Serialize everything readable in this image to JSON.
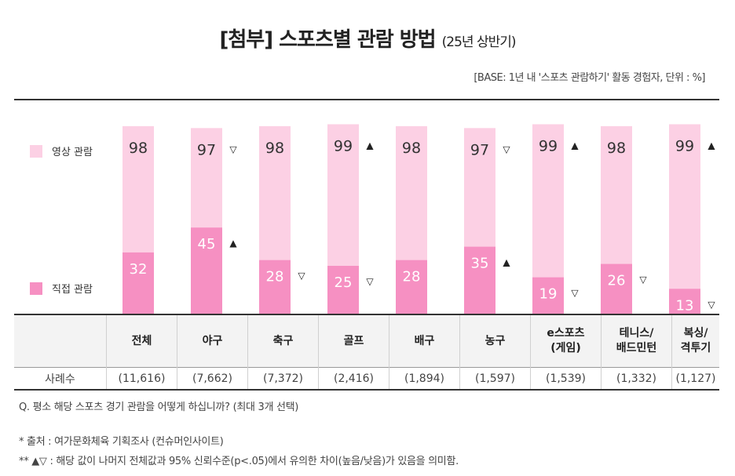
{
  "header": {
    "title": "[첨부] 스포츠별 관람 방법",
    "title_suffix": "(25년 상반기)",
    "base_note": "[BASE: 1년 내 '스포츠 관람하기' 활동 경험자, 단위 : %]"
  },
  "legend": {
    "video": "영상 관람",
    "direct": "직접 관람"
  },
  "colors": {
    "video": "#fcd0e4",
    "direct": "#f690c2"
  },
  "table": {
    "sample_label": "사례수",
    "categories": [
      {
        "name": "전체",
        "sample": "(11,616)"
      },
      {
        "name": "야구",
        "sample": "(7,662)"
      },
      {
        "name": "축구",
        "sample": "(7,372)"
      },
      {
        "name": "골프",
        "sample": "(2,416)"
      },
      {
        "name": "배구",
        "sample": "(1,894)"
      },
      {
        "name": "농구",
        "sample": "(1,597)"
      },
      {
        "name": "e스포츠\n(게임)",
        "sample": "(1,539)"
      },
      {
        "name": "테니스/\n배드민턴",
        "sample": "(1,332)"
      },
      {
        "name": "복싱/\n격투기",
        "sample": "(1,127)"
      }
    ]
  },
  "chart_data": {
    "type": "bar",
    "categories": [
      "전체",
      "야구",
      "축구",
      "골프",
      "배구",
      "농구",
      "e스포츠(게임)",
      "테니스/배드민턴",
      "복싱/격투기"
    ],
    "series": [
      {
        "name": "영상 관람",
        "values": [
          98,
          97,
          98,
          99,
          98,
          97,
          99,
          98,
          99
        ],
        "markers": [
          "",
          "▽",
          "",
          "▲",
          "",
          "▽",
          "▲",
          "",
          "▲"
        ]
      },
      {
        "name": "직접 관람",
        "values": [
          32,
          45,
          28,
          25,
          28,
          35,
          19,
          26,
          13
        ],
        "markers": [
          "",
          "▲",
          "▽",
          "▽",
          "",
          "▲",
          "▽",
          "▽",
          "▽"
        ]
      }
    ],
    "ylim": [
      0,
      100
    ],
    "unit": "%"
  },
  "footer": {
    "question": "Q. 평소 해당 스포츠 경기 관람을 어떻게 하십니까? (최대 3개 선택)",
    "source": "* 출처 : 여가문화체육 기획조사 (컨슈머인사이트)",
    "significance": "** ▲▽ : 해당 값이 나머지 전체값과 95% 신뢰수준(p<.05)에서 유의한 차이(높음/낮음)가 있음을 의미함."
  }
}
